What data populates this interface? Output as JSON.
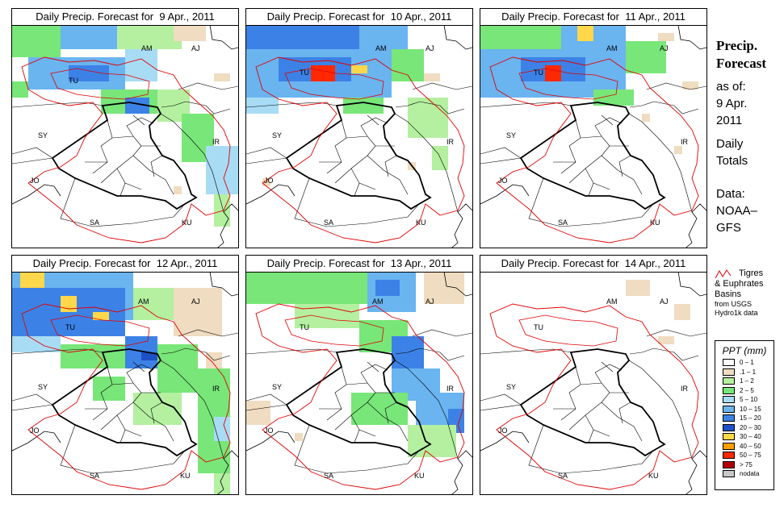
{
  "panels": [
    {
      "title": "Daily Precip. Forecast for  9 Apr., 2011"
    },
    {
      "title": "Daily Precip. Forecast for  10 Apr., 2011"
    },
    {
      "title": "Daily Precip. Forecast for  11 Apr., 2011"
    },
    {
      "title": "Daily Precip. Forecast for  12 Apr., 2011"
    },
    {
      "title": "Daily Precip. Forecast for  13 Apr., 2011"
    },
    {
      "title": "Daily Precip. Forecast for  14 Apr., 2011"
    }
  ],
  "map_labels": {
    "am": "AM",
    "aj": "AJ",
    "tu": "TU",
    "sy": "SY",
    "ir": "IR",
    "jo": "JO",
    "sa": "SA",
    "ku": "KU"
  },
  "sidebar": {
    "title1": "Precip.",
    "title2": "Forecast",
    "asof1": "as of:",
    "asof2": "9 Apr.",
    "asof3": "2011",
    "daily1": "Daily",
    "daily2": "Totals",
    "data1": "Data:",
    "data2": "NOAA–",
    "data3": "GFS"
  },
  "basin_legend": {
    "l1": "Tigres",
    "l2": "& Euphrates",
    "l3": "Basins",
    "l4": "from USGS",
    "l5": "Hydro1k data"
  },
  "ppt_legend": {
    "title": "PPT (mm)",
    "items": [
      {
        "label": "0 – 1",
        "color": "#ffffff"
      },
      {
        "label": ".1 – 1",
        "color": "#f0dcc0"
      },
      {
        "label": "1 – 2",
        "color": "#b4f0a0"
      },
      {
        "label": "2 – 5",
        "color": "#78e678"
      },
      {
        "label": "5 – 10",
        "color": "#a8dcf4"
      },
      {
        "label": "10 – 15",
        "color": "#6ab4f0"
      },
      {
        "label": "15 – 20",
        "color": "#3c82e6"
      },
      {
        "label": "20 – 30",
        "color": "#1e50c8"
      },
      {
        "label": "30 – 40",
        "color": "#ffd74a"
      },
      {
        "label": "40 – 50",
        "color": "#ffa000"
      },
      {
        "label": "50 – 75",
        "color": "#ff2800"
      },
      {
        "label": "> 75",
        "color": "#b40000"
      },
      {
        "label": "nodata",
        "color": "#c8c8c8"
      }
    ]
  }
}
